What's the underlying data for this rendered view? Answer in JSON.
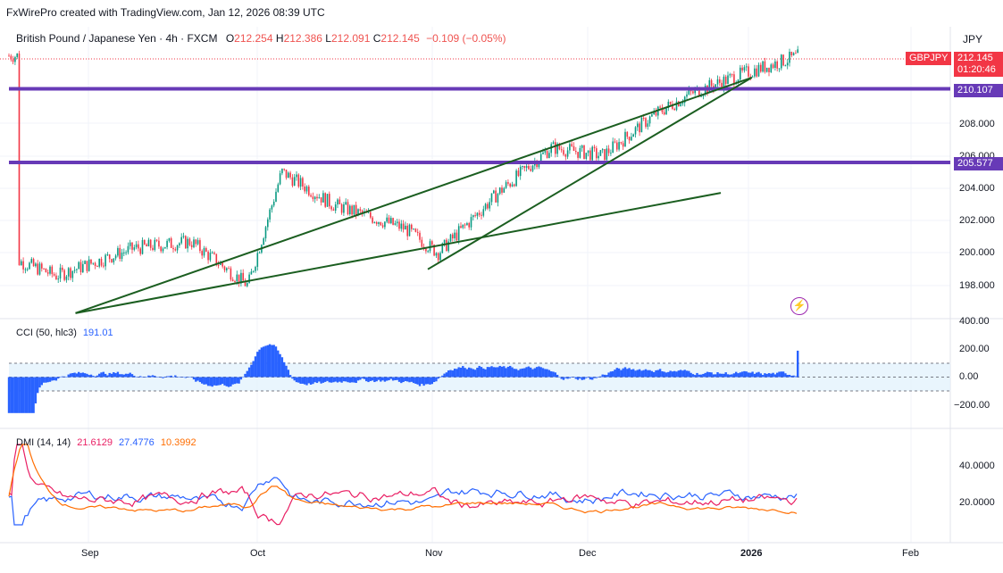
{
  "header": {
    "credit": "FxWirePro created with TradingView.com, Jan 12, 2026 08:39 UTC"
  },
  "legend": {
    "symbol": "British Pound / Japanese Yen · 4h · FXCM",
    "o_label": "O",
    "o": "212.254",
    "h_label": "H",
    "h": "212.386",
    "l_label": "L",
    "l": "212.091",
    "c_label": "C",
    "c": "212.145",
    "change": "−0.109 (−0.05%)"
  },
  "currency": "JPY",
  "price_axis": {
    "ticks": [
      "208.000",
      "206.000",
      "204.000",
      "202.000",
      "200.000",
      "198.000"
    ],
    "tags": {
      "symbol": "GBPJPY",
      "last_price": "212.145",
      "countdown": "01:20:46",
      "level_upper": "210.107",
      "level_lower": "205.577"
    }
  },
  "cci": {
    "legend_name": "CCI (50, hlc3)",
    "legend_value": "191.01",
    "ticks": [
      "400.00",
      "200.00",
      "0.00",
      "−200.00"
    ]
  },
  "dmi": {
    "legend_name": "DMI (14, 14)",
    "plus_di": "21.6129",
    "minus_di": "27.4776",
    "adx": "10.3992",
    "ticks": [
      "40.0000",
      "20.0000"
    ]
  },
  "time_axis": [
    "Sep",
    "Oct",
    "Nov",
    "Dec",
    "2026",
    "Feb"
  ],
  "colors": {
    "up": "#089981",
    "down": "#f23645",
    "level": "#673ab7",
    "trend": "#1b5e20",
    "cci": "#2962ff",
    "plus_di": "#2962ff",
    "minus_di": "#e91e63",
    "adx": "#ff6d00",
    "tag_red": "#f23645"
  },
  "chart_data": {
    "type": "candlestick",
    "symbol": "GBPJPY",
    "timeframe": "4h",
    "price_range": [
      197,
      213
    ],
    "horizontal_levels": [
      210.107,
      205.577
    ],
    "trend_lines": [
      {
        "from": [
          "Aug 30",
          196.3
        ],
        "to": [
          "Jan 3",
          210.8
        ]
      },
      {
        "from": [
          "Aug 30",
          196.3
        ],
        "to": [
          "Dec 28",
          203.7
        ]
      },
      {
        "from": [
          "Nov 1",
          199.0
        ],
        "to": [
          "Jan 3",
          210.8
        ]
      }
    ],
    "price_path": [
      {
        "date": "Aug 15",
        "close": 199.5
      },
      {
        "date": "Aug 25",
        "close": 198.6
      },
      {
        "date": "Sep 10",
        "close": 200.3
      },
      {
        "date": "Sep 20",
        "close": 200.7
      },
      {
        "date": "Sep 30",
        "close": 198.0
      },
      {
        "date": "Oct 6",
        "close": 205.0
      },
      {
        "date": "Oct 15",
        "close": 203.0
      },
      {
        "date": "Oct 28",
        "close": 201.5
      },
      {
        "date": "Nov 3",
        "close": 200.0
      },
      {
        "date": "Nov 15",
        "close": 203.8
      },
      {
        "date": "Nov 25",
        "close": 206.5
      },
      {
        "date": "Dec 5",
        "close": 206.0
      },
      {
        "date": "Dec 15",
        "close": 208.5
      },
      {
        "date": "Dec 22",
        "close": 209.8
      },
      {
        "date": "Jan 1",
        "close": 211.0
      },
      {
        "date": "Jan 12",
        "close": 212.145
      }
    ],
    "cci_range": [
      -300,
      400
    ],
    "cci_bands": [
      100,
      -100
    ],
    "cci_last": 191.01,
    "dmi_range": [
      0,
      55
    ],
    "dmi_last": {
      "plus_di": 21.6129,
      "minus_di": 27.4776,
      "adx": 10.3992
    }
  }
}
